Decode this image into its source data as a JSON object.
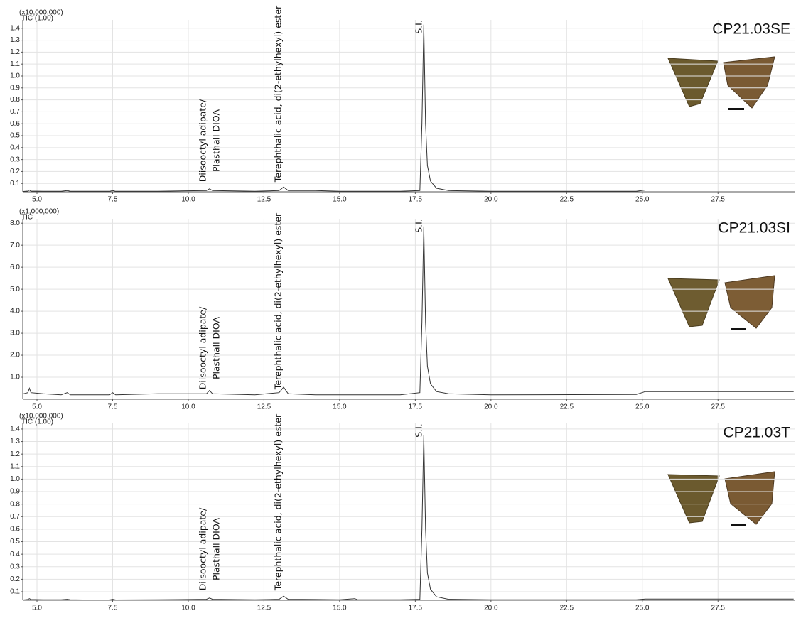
{
  "chart_data": [
    {
      "type": "line",
      "title": "CP21.03SE",
      "scale_label": "(x10,000,000)",
      "y_label": "TIC (1.00)",
      "annotations": [
        [
          "Diisooctyl adipate/",
          "Plasthall DIOA"
        ],
        [
          "Terephthalic acid, di(2-ethylhexyl) ester"
        ],
        [
          "S.I."
        ]
      ],
      "x": [
        4.55,
        4.7,
        4.75,
        4.8,
        5.2,
        5.8,
        6.0,
        6.1,
        6.5,
        7.4,
        7.5,
        7.6,
        9.0,
        10.6,
        10.7,
        10.8,
        12.2,
        13.0,
        13.15,
        13.3,
        14.2,
        15.0,
        17.0,
        17.65,
        17.72,
        17.78,
        17.84,
        17.9,
        18.0,
        18.2,
        18.6,
        20.0,
        24.8,
        25.1,
        30.0
      ],
      "values": [
        0.033,
        0.036,
        0.045,
        0.036,
        0.035,
        0.035,
        0.04,
        0.035,
        0.034,
        0.034,
        0.04,
        0.034,
        0.035,
        0.04,
        0.055,
        0.04,
        0.035,
        0.04,
        0.07,
        0.04,
        0.04,
        0.035,
        0.035,
        0.04,
        0.6,
        1.43,
        0.6,
        0.25,
        0.12,
        0.06,
        0.04,
        0.035,
        0.035,
        0.045,
        0.045
      ],
      "color": "#333333",
      "grid": true,
      "xlim": [
        4.53,
        30.03
      ],
      "ylim": [
        0.03,
        1.47
      ],
      "xticks": [
        {
          "value": 5,
          "label": "5.0"
        },
        {
          "value": 7.5,
          "label": "7.5"
        },
        {
          "value": 10,
          "label": "10.0"
        },
        {
          "value": 12.5,
          "label": "12.5"
        },
        {
          "value": 15,
          "label": "15.0"
        },
        {
          "value": 17.5,
          "label": "17.5"
        },
        {
          "value": 20,
          "label": "20.0"
        },
        {
          "value": 22.5,
          "label": "22.5"
        },
        {
          "value": 25,
          "label": "25.0"
        },
        {
          "value": 27.5,
          "label": "27.5"
        }
      ],
      "yticks": [
        0.1,
        0.2,
        0.3,
        0.4,
        0.5,
        0.6,
        0.7,
        0.8,
        0.9,
        {
          "value": 1,
          "label": "1.0"
        },
        1.1,
        1.2,
        1.3,
        1.4
      ]
    },
    {
      "type": "line",
      "title": "CP21.03SI",
      "scale_label": "(x1,000,000)",
      "y_label": "TIC",
      "annotations": [
        [
          "Diisooctyl adipate/",
          "Plasthall DIOA"
        ],
        [
          "Terephthalic acid, di(2-ethylhexyl) ester"
        ],
        [
          "S.I."
        ]
      ],
      "x": [
        4.55,
        4.7,
        4.75,
        4.8,
        5.2,
        5.8,
        6.0,
        6.1,
        6.5,
        7.4,
        7.5,
        7.6,
        9.0,
        10.6,
        10.7,
        10.8,
        12.2,
        13.0,
        13.15,
        13.3,
        14.2,
        15.0,
        17.0,
        17.65,
        17.72,
        17.78,
        17.84,
        17.9,
        18.0,
        18.2,
        18.6,
        20.0,
        24.8,
        25.1,
        30.0
      ],
      "values": [
        0.25,
        0.3,
        0.5,
        0.3,
        0.25,
        0.2,
        0.3,
        0.2,
        0.2,
        0.2,
        0.3,
        0.2,
        0.25,
        0.25,
        0.4,
        0.25,
        0.2,
        0.3,
        0.55,
        0.25,
        0.2,
        0.2,
        0.2,
        0.3,
        3.5,
        7.85,
        3.5,
        1.5,
        0.7,
        0.35,
        0.25,
        0.2,
        0.22,
        0.35,
        0.35
      ],
      "color": "#333333",
      "grid": true,
      "xlim": [
        4.53,
        30.03
      ],
      "ylim": [
        0,
        8.2
      ],
      "xticks": [
        {
          "value": 5,
          "label": "5.0"
        },
        {
          "value": 7.5,
          "label": "7.5"
        },
        {
          "value": 10,
          "label": "10.0"
        },
        {
          "value": 12.5,
          "label": "12.5"
        },
        {
          "value": 15,
          "label": "15.0"
        },
        {
          "value": 17.5,
          "label": "17.5"
        },
        {
          "value": 20,
          "label": "20.0"
        },
        {
          "value": 22.5,
          "label": "22.5"
        },
        {
          "value": 25,
          "label": "25.0"
        },
        {
          "value": 27.5,
          "label": "27.5"
        }
      ],
      "yticks": [
        {
          "value": 1,
          "label": "1.0"
        },
        {
          "value": 2,
          "label": "2.0"
        },
        {
          "value": 3,
          "label": "3.0"
        },
        {
          "value": 4,
          "label": "4.0"
        },
        {
          "value": 5,
          "label": "5.0"
        },
        {
          "value": 6,
          "label": "6.0"
        },
        {
          "value": 7,
          "label": "7.0"
        },
        {
          "value": 8,
          "label": "8.0"
        }
      ]
    },
    {
      "type": "line",
      "title": "CP21.03T",
      "scale_label": "(x10,000,000)",
      "y_label": "TIC (1.00)",
      "annotations": [
        [
          "Diisooctyl adipate/",
          "Plasthall DIOA"
        ],
        [
          "Terephthalic acid, di(2-ethylhexyl) ester"
        ],
        [
          "S.I."
        ]
      ],
      "x": [
        4.55,
        4.7,
        4.75,
        4.8,
        5.2,
        5.8,
        6.0,
        6.1,
        6.5,
        7.4,
        7.5,
        7.6,
        9.0,
        10.6,
        10.7,
        10.8,
        12.2,
        13.0,
        13.15,
        13.3,
        14.2,
        15.0,
        15.5,
        15.6,
        17.0,
        17.65,
        17.72,
        17.78,
        17.84,
        17.9,
        18.0,
        18.2,
        18.6,
        20.0,
        24.8,
        25.1,
        30.0
      ],
      "values": [
        0.035,
        0.038,
        0.045,
        0.038,
        0.036,
        0.036,
        0.04,
        0.036,
        0.035,
        0.035,
        0.04,
        0.035,
        0.036,
        0.04,
        0.05,
        0.04,
        0.036,
        0.04,
        0.065,
        0.04,
        0.038,
        0.036,
        0.045,
        0.036,
        0.036,
        0.04,
        0.6,
        1.35,
        0.6,
        0.25,
        0.12,
        0.06,
        0.04,
        0.036,
        0.036,
        0.042,
        0.042
      ],
      "color": "#333333",
      "grid": true,
      "xlim": [
        4.53,
        30.03
      ],
      "ylim": [
        0.032,
        1.445
      ],
      "xticks": [
        {
          "value": 5,
          "label": "5.0"
        },
        {
          "value": 7.5,
          "label": "7.5"
        },
        {
          "value": 10,
          "label": "10.0"
        },
        {
          "value": 12.5,
          "label": "12.5"
        },
        {
          "value": 15,
          "label": "15.0"
        },
        {
          "value": 17.5,
          "label": "17.5"
        },
        {
          "value": 20,
          "label": "20.0"
        },
        {
          "value": 22.5,
          "label": "22.5"
        },
        {
          "value": 25,
          "label": "25.0"
        },
        {
          "value": 27.5,
          "label": "27.5"
        }
      ],
      "yticks": [
        0.1,
        0.2,
        0.3,
        0.4,
        0.5,
        0.6,
        0.7,
        0.8,
        0.9,
        {
          "value": 1,
          "label": "1.0"
        },
        1.1,
        1.2,
        1.3,
        1.4
      ]
    }
  ]
}
